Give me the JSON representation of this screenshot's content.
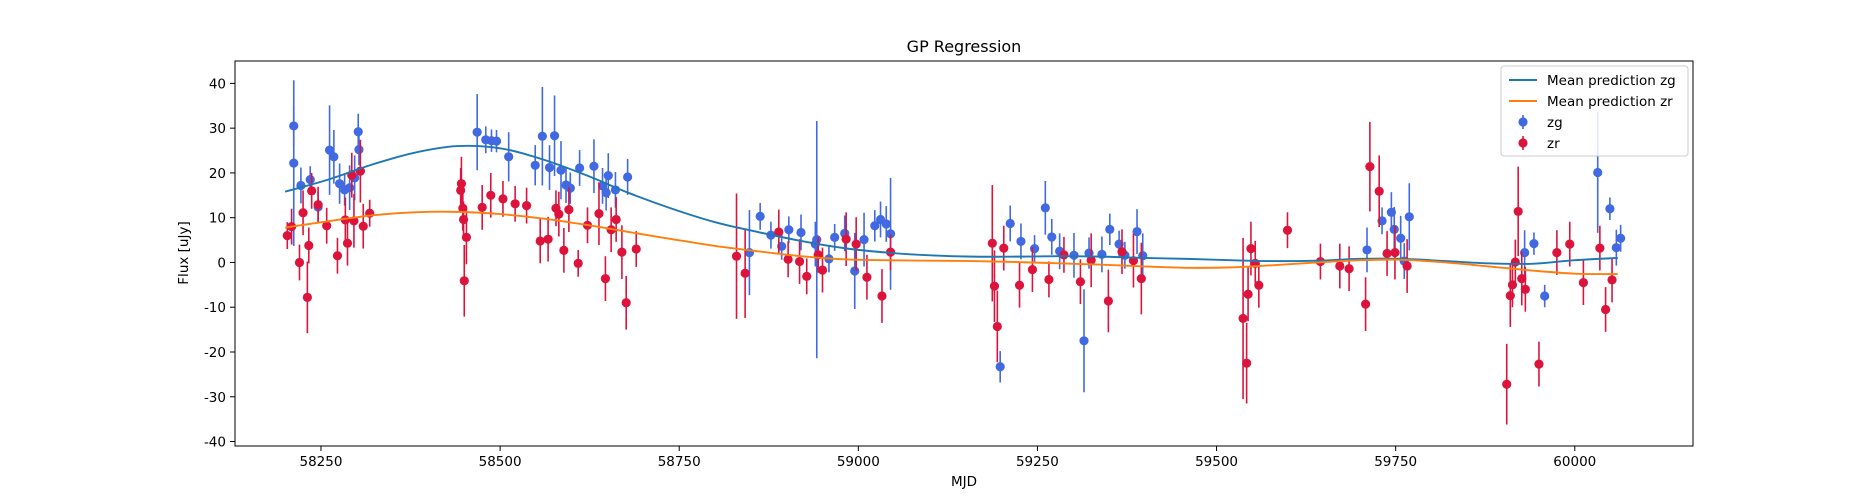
{
  "chart_data": {
    "type": "scatter",
    "title": "GP Regression",
    "xlabel": "MJD",
    "ylabel": "Flux [uJy]",
    "xlim": [
      58130,
      60165
    ],
    "ylim": [
      -41,
      45
    ],
    "xticks": [
      58250,
      58500,
      58750,
      59000,
      59250,
      59500,
      59750,
      60000
    ],
    "yticks": [
      -40,
      -30,
      -20,
      -10,
      0,
      10,
      20,
      30,
      40
    ],
    "grid": false,
    "legend_position": "upper right",
    "colors": {
      "mean_zg": "#1f77b4",
      "mean_zr": "#ff7f0e",
      "zg": "#4169e1",
      "zr": "#dc143c"
    },
    "legend": [
      {
        "label": "Mean prediction zg",
        "kind": "line",
        "color": "#1f77b4"
      },
      {
        "label": "Mean prediction zr",
        "kind": "line",
        "color": "#ff7f0e"
      },
      {
        "label": "zg",
        "kind": "errorbar",
        "color": "#4169e1"
      },
      {
        "label": "zr",
        "kind": "errorbar",
        "color": "#dc143c"
      }
    ],
    "series": [
      {
        "name": "Mean prediction zg",
        "kind": "line",
        "color": "#1f77b4",
        "x": [
          58200,
          58260,
          58320,
          58380,
          58440,
          58500,
          58560,
          58620,
          58680,
          58740,
          58800,
          58860,
          58920,
          58980,
          59040,
          59100,
          59160,
          59220,
          59280,
          59340,
          59400,
          59460,
          59520,
          59580,
          59640,
          59700,
          59760,
          59820,
          59880,
          59940,
          60000,
          60060
        ],
        "y": [
          15.8,
          18.5,
          21.8,
          24.5,
          26,
          25.5,
          23,
          19.5,
          15.5,
          12,
          9,
          6.8,
          4.8,
          3.2,
          2.2,
          1.6,
          1.3,
          1.3,
          1.4,
          1.3,
          1,
          0.8,
          0.5,
          0.3,
          0.4,
          0.8,
          0.8,
          0.3,
          -0.2,
          -0.3,
          0.5,
          1
        ]
      },
      {
        "name": "Mean prediction zr",
        "kind": "line",
        "color": "#ff7f0e",
        "x": [
          58200,
          58260,
          58320,
          58380,
          58440,
          58500,
          58560,
          58620,
          58680,
          58740,
          58800,
          58860,
          58920,
          58980,
          59040,
          59100,
          59160,
          59220,
          59280,
          59340,
          59400,
          59460,
          59520,
          59580,
          59640,
          59700,
          59760,
          59820,
          59880,
          59940,
          60000,
          60060
        ],
        "y": [
          7.8,
          9.2,
          10.5,
          11.2,
          11.3,
          10.8,
          9.8,
          8.4,
          6.8,
          5.2,
          3.7,
          2.5,
          1.4,
          0.7,
          0.5,
          0.4,
          0.3,
          0.1,
          -0.2,
          -0.5,
          -0.9,
          -1.2,
          -1.1,
          -0.6,
          0,
          0.5,
          0.6,
          0,
          -0.9,
          -1.8,
          -2.5,
          -2.6
        ]
      },
      {
        "name": "zg",
        "kind": "errorbar",
        "color": "#4169e1",
        "x": [
          58212,
          58212,
          58222,
          58235,
          58246,
          58262,
          58268,
          58276,
          58283,
          58290,
          58297,
          58302,
          58303,
          58468,
          58480,
          58488,
          58495,
          58512,
          58549,
          58559,
          58569,
          58576,
          58585,
          58592,
          58598,
          58611,
          58631,
          58643,
          58648,
          58651,
          58661,
          58678,
          58848,
          58863,
          58878,
          58893,
          58903,
          58920,
          58940,
          58942,
          58959,
          58967,
          58981,
          58995,
          59008,
          59023,
          59031,
          59039,
          59045,
          59198,
          59212,
          59227,
          59246,
          59261,
          59270,
          59281,
          59301,
          59315,
          59322,
          59340,
          59351,
          59364,
          59372,
          59389,
          59397,
          59710,
          59731,
          59744,
          59748,
          59757,
          59762,
          59769,
          59930,
          59943,
          59958,
          60032,
          60049,
          60058,
          60064
        ],
        "y": [
          30.5,
          22.2,
          17.2,
          18.5,
          12.4,
          25.1,
          23.6,
          17.6,
          16.2,
          16.7,
          18.9,
          29.2,
          25.2,
          29.1,
          27.4,
          27.2,
          27.1,
          23.6,
          21.7,
          28.2,
          21.2,
          28.3,
          20.6,
          17.3,
          16.6,
          21.1,
          21.5,
          17.1,
          15.6,
          19.4,
          16.2,
          19.1,
          2.2,
          10.3,
          6.1,
          3.6,
          7.3,
          6.7,
          4.1,
          5.1,
          0.8,
          5.6,
          6.5,
          -1.9,
          5.1,
          8.2,
          9.6,
          8.6,
          6.4,
          -23.3,
          8.7,
          4.7,
          3.1,
          12.2,
          5.7,
          2.5,
          1.6,
          -17.5,
          2.1,
          1.8,
          7.4,
          4.1,
          1.6,
          6.9,
          1.5,
          2.8,
          9.3,
          11.2,
          7.4,
          5.4,
          0.3,
          10.2,
          2.2,
          4.2,
          -7.5,
          20.1,
          12,
          3.3,
          5.4
        ],
        "err": [
          4.5,
          18.5,
          4,
          3,
          3.5,
          10,
          6,
          4.5,
          3.5,
          5,
          5,
          4,
          3.5,
          8.5,
          3,
          2.5,
          2.5,
          5.5,
          4.5,
          11,
          5,
          9,
          6.5,
          4,
          3.5,
          4,
          6,
          4,
          4,
          5,
          4,
          4,
          9.5,
          3,
          3,
          3,
          3,
          4,
          5,
          26.5,
          3,
          3,
          4,
          8.5,
          6,
          3.5,
          4,
          4,
          12.5,
          3.5,
          4,
          4,
          3,
          6,
          4,
          4,
          5,
          11.5,
          3.5,
          4,
          3.5,
          3,
          3,
          5,
          5,
          5,
          3,
          4.5,
          5,
          5,
          4,
          7.5,
          5,
          2.5,
          2.5,
          13.5,
          2.5,
          4,
          3
        ]
      },
      {
        "name": "zr",
        "kind": "errorbar",
        "color": "#dc143c",
        "x": [
          58203,
          58209,
          58220,
          58225,
          58231,
          58233,
          58237,
          58246,
          58258,
          58273,
          58284,
          58287,
          58293,
          58296,
          58305,
          58309,
          58318,
          58445,
          58446,
          58448,
          58449,
          58450,
          58453,
          58475,
          58487,
          58504,
          58521,
          58537,
          58556,
          58567,
          58578,
          58582,
          58589,
          58596,
          58609,
          58622,
          58638,
          58647,
          58655,
          58662,
          58670,
          58676,
          58690,
          58830,
          58842,
          58889,
          58902,
          58918,
          58928,
          58944,
          58950,
          58983,
          58997,
          59012,
          59033,
          59045,
          59187,
          59190,
          59194,
          59203,
          59225,
          59243,
          59266,
          59287,
          59310,
          59325,
          59349,
          59368,
          59384,
          59395,
          59537,
          59542,
          59544,
          59548,
          59554,
          59559,
          59599,
          59645,
          59672,
          59685,
          59708,
          59714,
          59727,
          59738,
          59749,
          59766,
          59905,
          59910,
          59913,
          59917,
          59921,
          59926,
          59931,
          59950,
          59975,
          59993,
          60012,
          60035,
          60043,
          60052
        ],
        "y": [
          6,
          8,
          0,
          11.1,
          -7.8,
          3.8,
          16,
          12.9,
          8.2,
          1.5,
          9.5,
          4.3,
          19.5,
          9.3,
          20.4,
          8.1,
          11,
          16.1,
          17.6,
          12.1,
          9.6,
          -4.1,
          5.6,
          12.3,
          15,
          14.2,
          13.1,
          12.7,
          4.8,
          5.2,
          12.1,
          10.8,
          2.7,
          11.8,
          -0.2,
          8.3,
          10.9,
          -3.6,
          7.3,
          9.6,
          2.3,
          -9,
          3,
          1.4,
          -2.4,
          6.8,
          0.7,
          0.2,
          -3.1,
          1.7,
          -1.7,
          5.2,
          4.1,
          -3.3,
          -7.5,
          2.3,
          4.3,
          -5.3,
          -14.3,
          3.2,
          -5.1,
          -1.6,
          -3.8,
          1.7,
          -4.3,
          0.5,
          -8.6,
          2.4,
          0.4,
          -3.6,
          -12.5,
          -22.5,
          -7.1,
          3.1,
          -0.2,
          -5.1,
          7.2,
          0.2,
          -0.8,
          -1.4,
          -9.3,
          21.4,
          15.9,
          2,
          2.2,
          -0.8,
          -27.2,
          -7.4,
          -5,
          0.1,
          11.4,
          -3.6,
          -6,
          -22.7,
          2.2,
          4.1,
          -4.5,
          3.2,
          -10.5,
          -3.9
        ],
        "err": [
          3,
          4,
          4,
          5,
          8,
          4,
          4,
          4,
          4,
          4,
          5,
          5,
          5,
          6,
          7,
          5,
          3,
          5,
          6,
          5,
          4,
          8,
          6,
          5,
          5,
          4,
          4,
          4,
          5,
          5,
          4,
          5,
          5,
          5,
          3,
          4,
          7,
          5,
          5,
          5,
          6,
          6,
          4,
          14,
          10,
          5,
          4,
          5,
          4,
          4,
          5,
          6,
          6,
          5,
          6,
          4,
          13,
          8,
          8,
          5,
          5,
          5,
          4,
          4,
          5,
          6,
          7,
          5,
          6,
          8,
          18,
          9,
          6,
          6,
          5,
          5,
          4,
          4,
          5,
          5,
          6,
          10,
          8,
          5,
          6,
          6,
          9,
          7,
          5,
          5,
          10,
          6,
          5,
          5,
          5,
          5,
          5,
          5,
          5,
          5
        ]
      }
    ]
  }
}
